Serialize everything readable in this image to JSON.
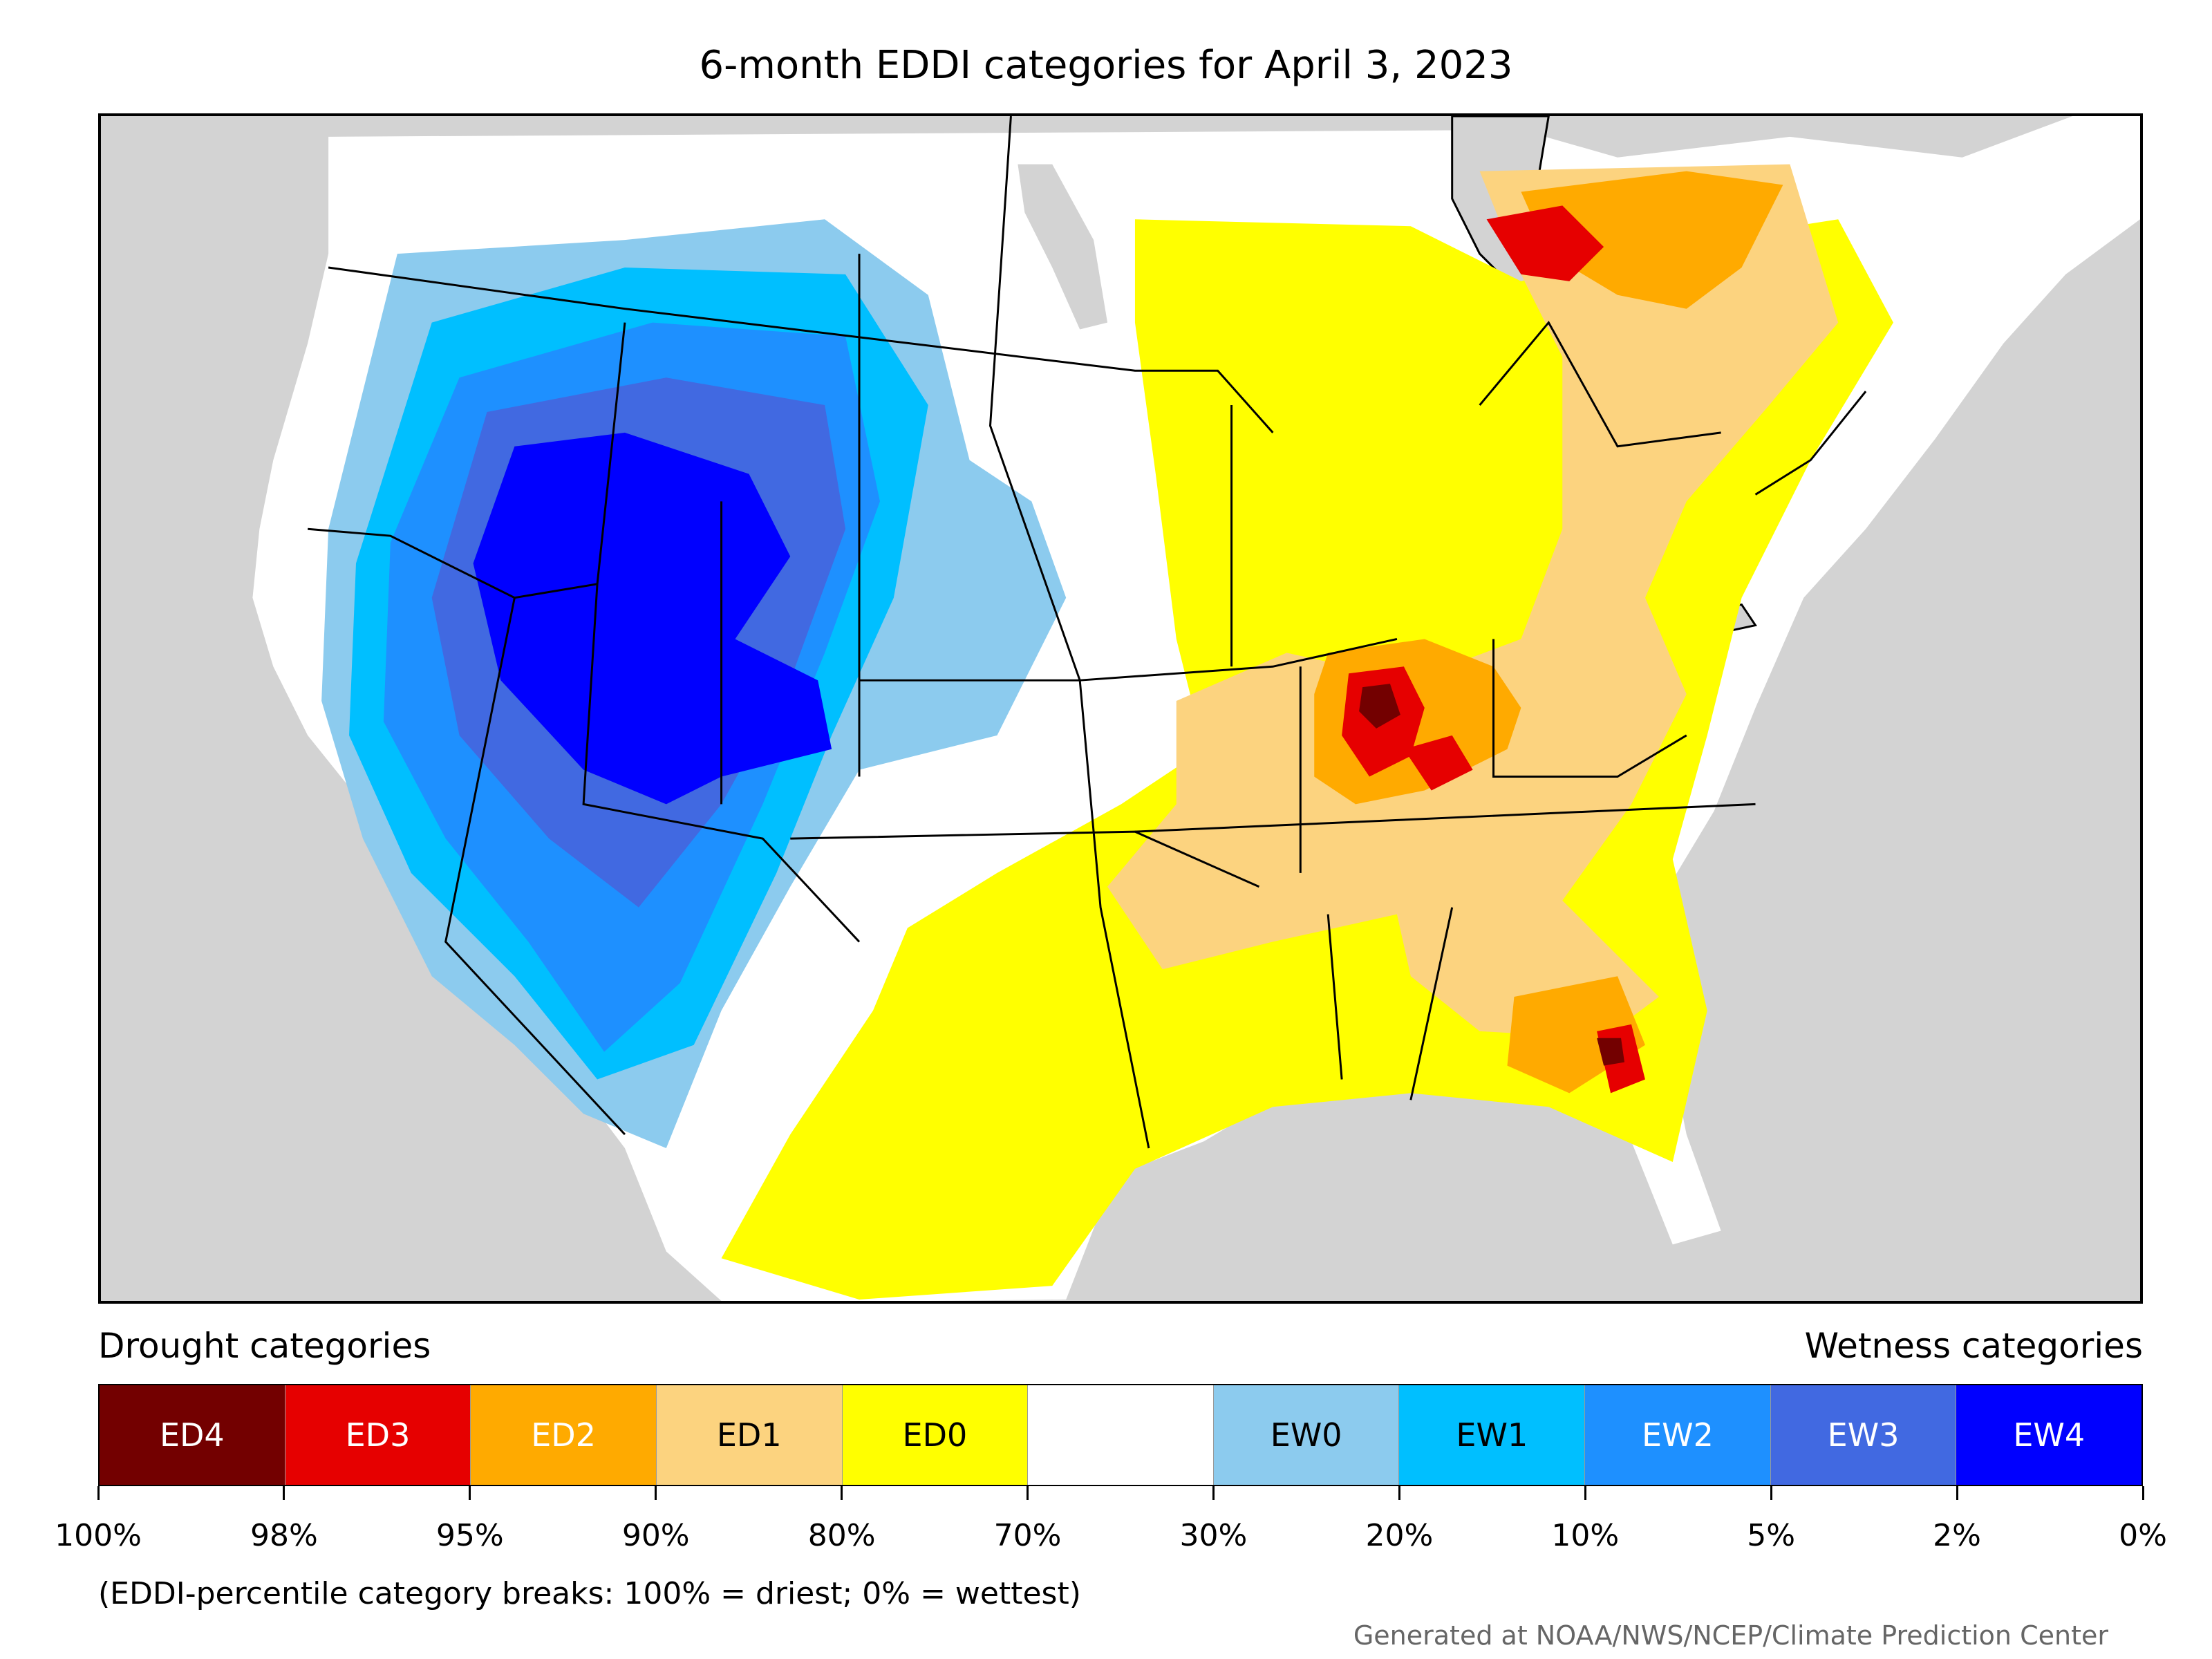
{
  "title": "6-month EDDI categories for April 3, 2023",
  "legend": {
    "drought_heading": "Drought categories",
    "wetness_heading": "Wetness categories",
    "categories": [
      {
        "label": "ED4",
        "color": "#730000",
        "text_color": "#ffffff"
      },
      {
        "label": "ED3",
        "color": "#e60000",
        "text_color": "#ffffff"
      },
      {
        "label": "ED2",
        "color": "#ffaa00",
        "text_color": "#ffffff"
      },
      {
        "label": "ED1",
        "color": "#fcd37f",
        "text_color": "#000000"
      },
      {
        "label": "ED0",
        "color": "#ffff00",
        "text_color": "#000000"
      },
      {
        "label": "",
        "color": "#ffffff",
        "text_color": "#000000"
      },
      {
        "label": "EW0",
        "color": "#8ccbee",
        "text_color": "#000000"
      },
      {
        "label": "EW1",
        "color": "#00bfff",
        "text_color": "#000000"
      },
      {
        "label": "EW2",
        "color": "#1e90ff",
        "text_color": "#ffffff"
      },
      {
        "label": "EW3",
        "color": "#4169e1",
        "text_color": "#ffffff"
      },
      {
        "label": "EW4",
        "color": "#0000ff",
        "text_color": "#ffffff"
      }
    ],
    "tick_labels": [
      "100%",
      "98%",
      "95%",
      "90%",
      "80%",
      "70%",
      "30%",
      "20%",
      "10%",
      "5%",
      "2%",
      "0%"
    ]
  },
  "note": "(EDDI-percentile category breaks: 100% = driest; 0% = wettest)",
  "credit": "Generated at NOAA/NWS/NCEP/Climate Prediction Center",
  "map_colors": {
    "background": "#d3d3d3",
    "land": "#ffffff",
    "border": "#000000"
  }
}
